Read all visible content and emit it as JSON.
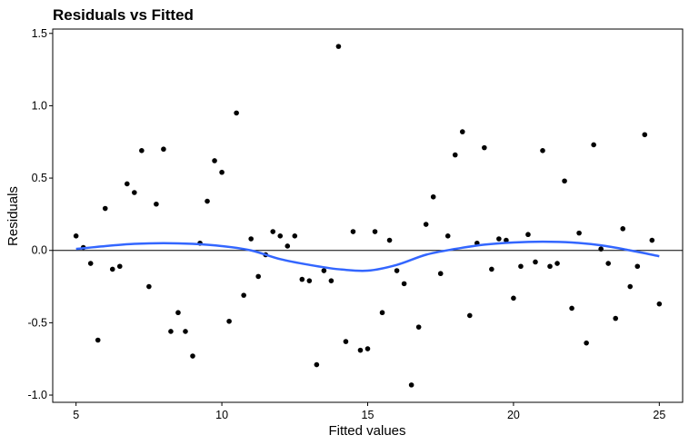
{
  "chart_data": {
    "type": "scatter",
    "title": "Residuals vs Fitted",
    "xlabel": "Fitted values",
    "ylabel": "Residuals",
    "xlim": [
      4.2,
      25.8
    ],
    "ylim": [
      -1.05,
      1.53
    ],
    "xticks": [
      5,
      10,
      15,
      20,
      25
    ],
    "yticks": [
      -1.0,
      -0.5,
      0.0,
      0.5,
      1.0,
      1.5
    ],
    "ytick_labels": [
      "-1.0",
      "-0.5",
      "0.0",
      "0.5",
      "1.0",
      "1.5"
    ],
    "grid": false,
    "reference_line": {
      "y": 0.0,
      "color": "#000000"
    },
    "points": {
      "color": "#000000",
      "x": [
        5.0,
        5.25,
        5.5,
        5.75,
        6.0,
        6.25,
        6.5,
        6.75,
        7.0,
        7.25,
        7.5,
        7.75,
        8.0,
        8.25,
        8.5,
        8.75,
        9.0,
        9.25,
        9.5,
        9.75,
        10.0,
        10.25,
        10.5,
        10.75,
        11.0,
        11.25,
        11.5,
        11.75,
        12.0,
        12.25,
        12.5,
        12.75,
        13.0,
        13.25,
        13.5,
        13.75,
        14.0,
        14.25,
        14.5,
        14.75,
        15.0,
        15.25,
        15.5,
        15.75,
        16.0,
        16.25,
        16.5,
        16.75,
        17.0,
        17.25,
        17.5,
        17.75,
        18.0,
        18.25,
        18.5,
        18.75,
        19.0,
        19.25,
        19.5,
        19.75,
        20.0,
        20.25,
        20.5,
        20.75,
        21.0,
        21.25,
        21.5,
        21.75,
        22.0,
        22.25,
        22.5,
        22.75,
        23.0,
        23.25,
        23.5,
        23.75,
        24.0,
        24.25,
        24.5,
        24.75,
        25.0
      ],
      "y": [
        0.1,
        0.02,
        -0.09,
        -0.62,
        0.29,
        -0.13,
        -0.11,
        0.46,
        0.4,
        0.69,
        -0.25,
        0.32,
        0.7,
        -0.56,
        -0.43,
        -0.56,
        -0.73,
        0.05,
        0.34,
        0.62,
        0.54,
        -0.49,
        0.95,
        -0.31,
        0.08,
        -0.18,
        -0.03,
        0.13,
        0.1,
        0.03,
        0.1,
        -0.2,
        -0.21,
        -0.79,
        -0.14,
        -0.21,
        1.41,
        -0.63,
        0.13,
        -0.69,
        -0.68,
        0.13,
        -0.43,
        0.07,
        -0.14,
        -0.23,
        -0.93,
        -0.53,
        0.18,
        0.37,
        -0.16,
        0.1,
        0.66,
        0.82,
        -0.45,
        0.05,
        0.71,
        -0.13,
        0.08,
        0.07,
        -0.33,
        -0.11,
        0.11,
        -0.08,
        0.69,
        -0.11,
        -0.09,
        0.48,
        -0.4,
        0.12,
        -0.64,
        0.73,
        0.01,
        -0.09,
        -0.47,
        0.15,
        -0.25,
        -0.11,
        0.8,
        0.07,
        -0.37
      ]
    },
    "smooth": {
      "color": "#3366ff",
      "x": [
        5.0,
        6.0,
        7.0,
        8.0,
        9.0,
        10.0,
        11.0,
        12.0,
        13.0,
        14.0,
        15.0,
        16.0,
        17.0,
        18.0,
        19.0,
        20.0,
        21.0,
        22.0,
        23.0,
        24.0,
        25.0
      ],
      "y": [
        0.01,
        0.03,
        0.045,
        0.05,
        0.045,
        0.03,
        0.0,
        -0.06,
        -0.1,
        -0.13,
        -0.14,
        -0.1,
        -0.03,
        0.01,
        0.04,
        0.055,
        0.06,
        0.055,
        0.035,
        0.0,
        -0.04
      ]
    }
  }
}
